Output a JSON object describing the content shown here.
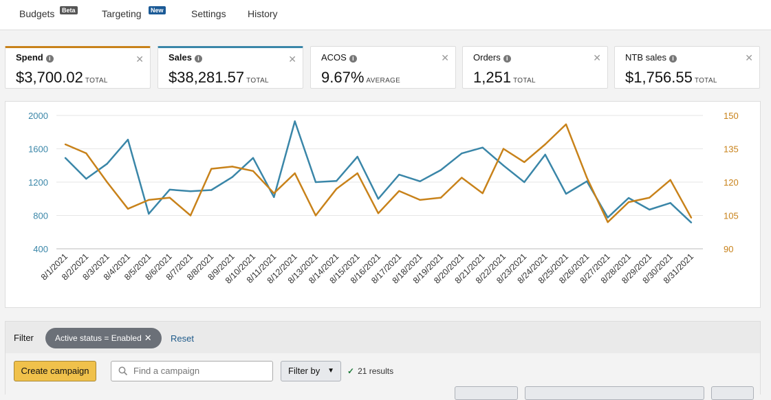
{
  "nav": {
    "tabs": [
      {
        "label": "Budgets",
        "badge": "Beta"
      },
      {
        "label": "Targeting",
        "badge": "New"
      },
      {
        "label": "Settings"
      },
      {
        "label": "History"
      }
    ]
  },
  "metrics": [
    {
      "label": "Spend",
      "value": "$3,700.02",
      "unit": "TOTAL",
      "selected": true,
      "color": "#c8821a"
    },
    {
      "label": "Sales",
      "value": "$38,281.57",
      "unit": "TOTAL",
      "selected": true,
      "color": "#3a86a8"
    },
    {
      "label": "ACOS",
      "value": "9.67%",
      "unit": "AVERAGE",
      "selected": false
    },
    {
      "label": "Orders",
      "value": "1,251",
      "unit": "TOTAL",
      "selected": false
    },
    {
      "label": "NTB sales",
      "value": "$1,756.55",
      "unit": "TOTAL",
      "selected": false
    }
  ],
  "chart_data": {
    "type": "line",
    "x": [
      "8/1/2021",
      "8/2/2021",
      "8/3/2021",
      "8/4/2021",
      "8/5/2021",
      "8/6/2021",
      "8/7/2021",
      "8/8/2021",
      "8/9/2021",
      "8/10/2021",
      "8/11/2021",
      "8/12/2021",
      "8/13/2021",
      "8/14/2021",
      "8/15/2021",
      "8/16/2021",
      "8/17/2021",
      "8/18/2021",
      "8/19/2021",
      "8/20/2021",
      "8/21/2021",
      "8/22/2021",
      "8/23/2021",
      "8/24/2021",
      "8/25/2021",
      "8/26/2021",
      "8/27/2021",
      "8/28/2021",
      "8/29/2021",
      "8/30/2021",
      "8/31/2021"
    ],
    "y_left": {
      "ticks": [
        "2000",
        "1600",
        "1200",
        "800",
        "400"
      ],
      "range": [
        400,
        2000
      ],
      "color": "#3a86a8"
    },
    "y_right": {
      "ticks": [
        "150",
        "135",
        "120",
        "105",
        "90"
      ],
      "range": [
        90,
        150
      ],
      "color": "#c8821a"
    },
    "series": [
      {
        "name": "Sales",
        "axis": "left",
        "color": "#3a86a8",
        "values": [
          1490,
          1240,
          1420,
          1710,
          820,
          1110,
          1090,
          1105,
          1260,
          1490,
          1020,
          1930,
          1200,
          1215,
          1505,
          1000,
          1290,
          1210,
          1345,
          1545,
          1615,
          1400,
          1200,
          1530,
          1060,
          1210,
          775,
          1010,
          870,
          950,
          715
        ]
      },
      {
        "name": "Spend",
        "axis": "right",
        "color": "#c8821a",
        "values": [
          137,
          133,
          120,
          108,
          112,
          113,
          105,
          126,
          127,
          125,
          115,
          124,
          105,
          117,
          124,
          106,
          116,
          112,
          113,
          122,
          115,
          135,
          129,
          137,
          146,
          122,
          102,
          111,
          113,
          121,
          104
        ]
      }
    ],
    "grid": true
  },
  "filter": {
    "label": "Filter",
    "chip": "Active status = Enabled",
    "reset": "Reset"
  },
  "actions": {
    "create": "Create campaign",
    "search_placeholder": "Find a campaign",
    "filter_by": "Filter by",
    "results": "21 results"
  }
}
